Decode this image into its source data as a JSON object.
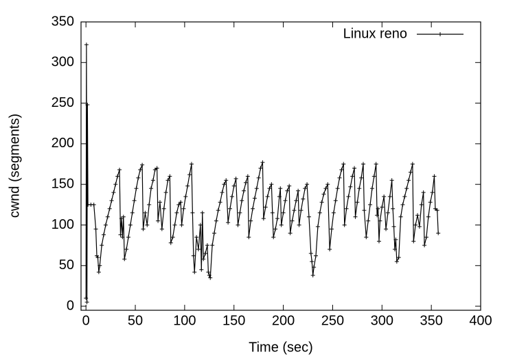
{
  "chart_data": {
    "type": "line",
    "xlabel": "Time (sec)",
    "ylabel": "cwnd (segments)",
    "xlim": [
      -5,
      400
    ],
    "ylim": [
      -5,
      350
    ],
    "xticks": [
      0,
      50,
      100,
      150,
      200,
      250,
      300,
      350,
      400
    ],
    "yticks": [
      0,
      50,
      100,
      150,
      200,
      250,
      300,
      350
    ],
    "legend_position": "upper-right",
    "series": [
      {
        "name": "Linux reno",
        "color": "#000000",
        "x": [
          0,
          0.5,
          1,
          1.5,
          2,
          5,
          8,
          10,
          11,
          12,
          13,
          14,
          16,
          18,
          20,
          22,
          24,
          26,
          28,
          30,
          32,
          34,
          35,
          36,
          37,
          38,
          39,
          41,
          43,
          45,
          47,
          49,
          51,
          53,
          55,
          57,
          58,
          60,
          62,
          64,
          66,
          68,
          70,
          72,
          73,
          75,
          77,
          79,
          81,
          83,
          85,
          86,
          88,
          90,
          92,
          94,
          96,
          97,
          99,
          101,
          103,
          105,
          107,
          108,
          109,
          110,
          112,
          114,
          116,
          117,
          118,
          119,
          121,
          123,
          124,
          125,
          126,
          128,
          130,
          132,
          134,
          136,
          138,
          140,
          142,
          144,
          146,
          148,
          150,
          152,
          154,
          156,
          158,
          160,
          162,
          164,
          165,
          167,
          169,
          171,
          173,
          175,
          177,
          179,
          180,
          182,
          184,
          186,
          188,
          189,
          190,
          192,
          194,
          196,
          197,
          198,
          200,
          202,
          204,
          206,
          207,
          209,
          211,
          213,
          215,
          216,
          218,
          220,
          222,
          224,
          226,
          228,
          229,
          230,
          231,
          233,
          235,
          237,
          239,
          241,
          243,
          245,
          247,
          249,
          251,
          253,
          255,
          257,
          259,
          261,
          262,
          264,
          266,
          268,
          270,
          272,
          273,
          275,
          277,
          279,
          281,
          282,
          284,
          286,
          288,
          290,
          292,
          294,
          295,
          296,
          297,
          298,
          300,
          302,
          304,
          306,
          308,
          310,
          311,
          312,
          313,
          314,
          315,
          317,
          319,
          321,
          323,
          325,
          327,
          329,
          331,
          332,
          334,
          336,
          338,
          340,
          342,
          343,
          345,
          347,
          349,
          351,
          353,
          354,
          356,
          357
        ],
        "values": [
          10,
          322,
          5,
          248,
          125,
          125,
          125,
          95,
          62,
          60,
          42,
          50,
          75,
          88,
          100,
          110,
          120,
          130,
          140,
          150,
          160,
          168,
          88,
          108,
          85,
          110,
          58,
          70,
          85,
          100,
          115,
          130,
          145,
          158,
          168,
          174,
          95,
          115,
          100,
          125,
          145,
          155,
          168,
          170,
          105,
          128,
          95,
          120,
          140,
          155,
          160,
          78,
          85,
          100,
          115,
          125,
          128,
          100,
          120,
          135,
          148,
          162,
          175,
          115,
          62,
          42,
          85,
          70,
          100,
          45,
          115,
          58,
          65,
          75,
          42,
          38,
          35,
          75,
          90,
          105,
          118,
          128,
          140,
          150,
          155,
          103,
          120,
          135,
          148,
          157,
          100,
          115,
          130,
          142,
          152,
          160,
          85,
          105,
          120,
          133,
          145,
          158,
          170,
          177,
          108,
          122,
          135,
          145,
          150,
          115,
          85,
          95,
          108,
          135,
          145,
          100,
          115,
          130,
          142,
          148,
          90,
          105,
          118,
          130,
          142,
          100,
          118,
          132,
          145,
          150,
          110,
          65,
          55,
          38,
          48,
          62,
          98,
          115,
          128,
          138,
          145,
          150,
          70,
          95,
          115,
          130,
          145,
          158,
          168,
          175,
          100,
          120,
          135,
          147,
          160,
          170,
          110,
          128,
          145,
          158,
          175,
          118,
          85,
          105,
          125,
          145,
          160,
          175,
          112,
          120,
          80,
          105,
          122,
          135,
          95,
          115,
          135,
          155,
          120,
          98,
          70,
          82,
          55,
          60,
          110,
          125,
          135,
          145,
          155,
          165,
          175,
          80,
          100,
          112,
          98,
          125,
          140,
          75,
          85,
          110,
          128,
          140,
          160,
          120,
          118,
          90
        ]
      }
    ]
  }
}
